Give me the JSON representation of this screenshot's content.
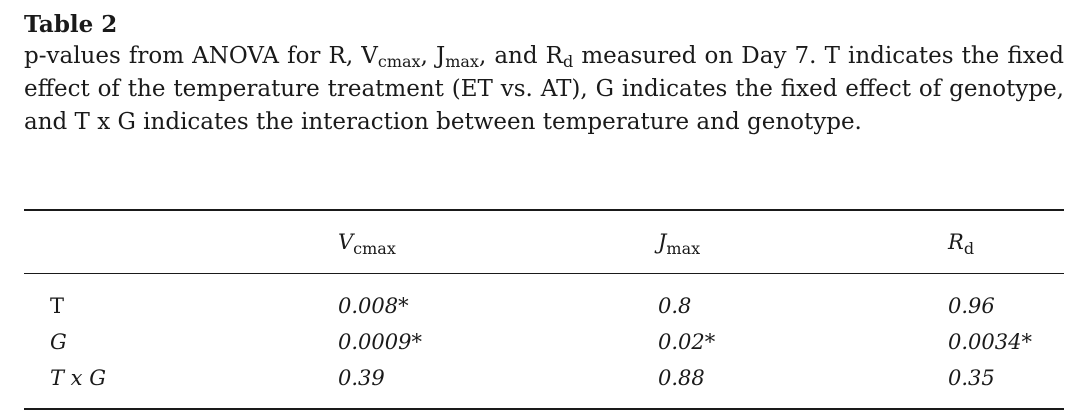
{
  "table": {
    "title": "Table 2",
    "caption": {
      "part1": "p-values from ANOVA for R, V",
      "sub1": "cmax",
      "part2": ", J",
      "sub2": "max",
      "part3": ", and R",
      "sub3": "d",
      "part4": " measured on Day 7. T indicates the fixed effect of the temperature treatment (ET vs. AT), G indicates the fixed effect of genotype, and T x G indicates the interaction between temperature and genotype."
    },
    "columns": [
      {
        "main": "V",
        "sub": "cmax"
      },
      {
        "main": "J",
        "sub": "max"
      },
      {
        "main": "R",
        "sub": "d"
      }
    ],
    "rows": [
      {
        "label": "T",
        "values": [
          "0.008*",
          "0.8",
          "0.96"
        ]
      },
      {
        "label": "G",
        "values": [
          "0.0009*",
          "0.02*",
          "0.0034*"
        ]
      },
      {
        "label": "T x G",
        "values": [
          "0.39",
          "0.88",
          "0.35"
        ]
      }
    ]
  }
}
